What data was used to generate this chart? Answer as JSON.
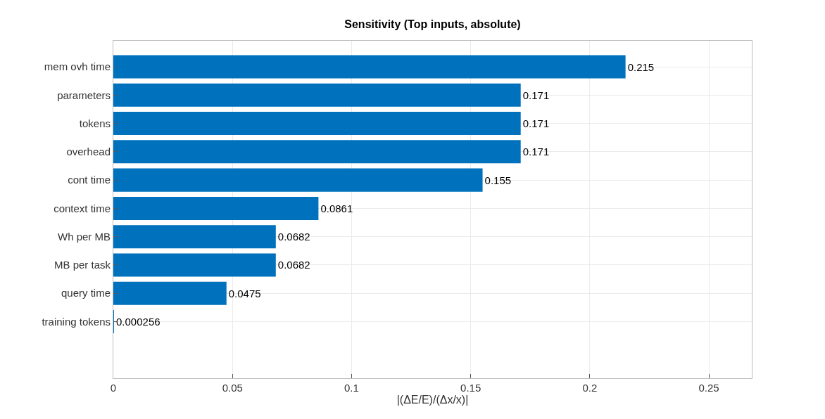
{
  "chart_data": {
    "type": "bar",
    "orientation": "horizontal",
    "title": "Sensitivity (Top inputs, absolute)",
    "xlabel": "|(ΔE/E)/(Δx/x)|",
    "categories": [
      "mem ovh time",
      "parameters",
      "tokens",
      "overhead",
      "cont time",
      "context time",
      "Wh per MB",
      "MB per task",
      "query time",
      "training tokens"
    ],
    "values": [
      0.215,
      0.171,
      0.171,
      0.171,
      0.155,
      0.0861,
      0.0682,
      0.0682,
      0.0475,
      0.000256
    ],
    "color": "#0072bd",
    "xlim": [
      0,
      0.268
    ],
    "xticks": [
      0,
      0.05,
      0.1,
      0.15,
      0.2,
      0.25
    ],
    "grid": true,
    "data_labels": true
  }
}
